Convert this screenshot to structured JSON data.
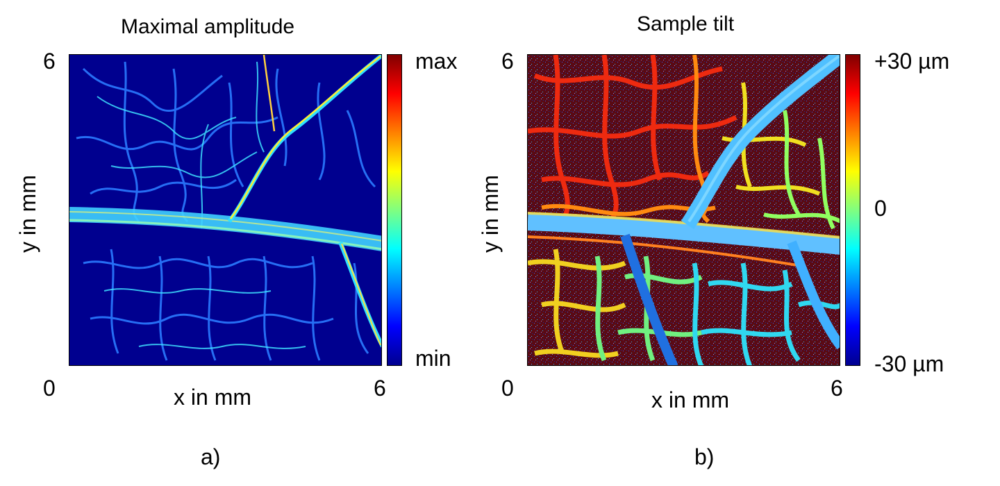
{
  "panel_a": {
    "title": "Maximal amplitude",
    "xlabel": "x in mm",
    "ylabel": "y in mm",
    "x_ticks": [
      "0",
      "6"
    ],
    "y_tick_top": "6",
    "colorbar": {
      "max_label": "max",
      "min_label": "min"
    },
    "caption": "a)"
  },
  "panel_b": {
    "title": "Sample tilt",
    "xlabel": "x in mm",
    "ylabel": "y in mm",
    "x_ticks": [
      "0",
      "6"
    ],
    "y_tick_top": "6",
    "colorbar": {
      "max_label": "+30 µm",
      "mid_label": "0",
      "min_label": "-30 µm"
    },
    "caption": "b)"
  },
  "colors": {
    "jet_dark_blue": "#00008f",
    "jet_dark_red": "#800000",
    "vein_cyan": "#33ddff",
    "vein_bright": "#ffff40",
    "background_b": "#5a0a14"
  }
}
